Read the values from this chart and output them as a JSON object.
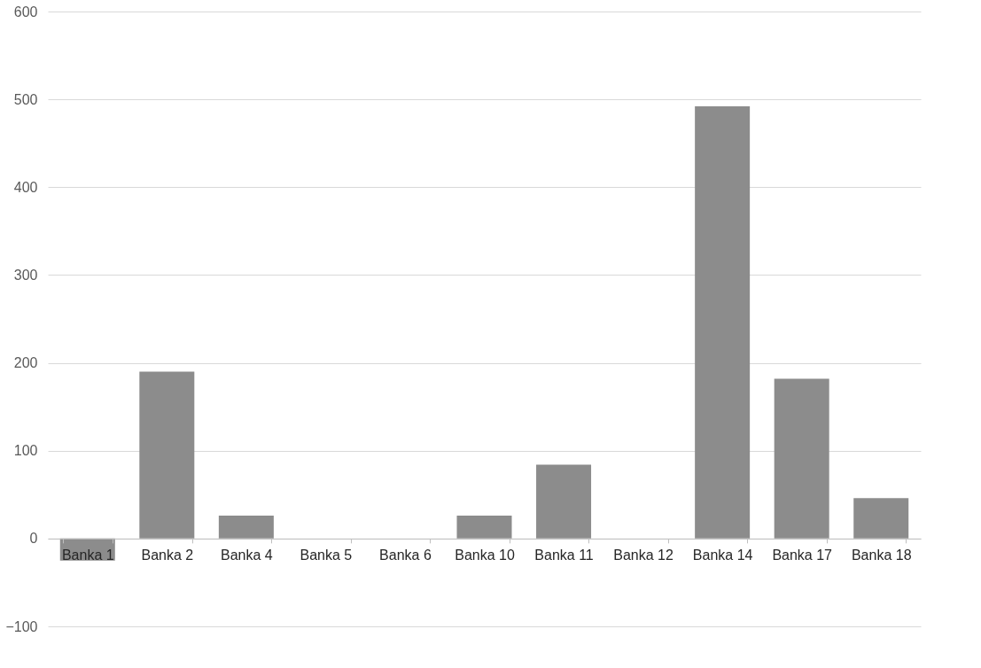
{
  "chart_data": {
    "type": "bar",
    "categories": [
      "Banka 1",
      "Banka 2",
      "Banka 4",
      "Banka 5",
      "Banka 6",
      "Banka 10",
      "Banka 11",
      "Banka 12",
      "Banka 14",
      "Banka 17",
      "Banka 18"
    ],
    "values": [
      -25,
      190,
      26,
      0,
      0,
      26,
      84,
      0,
      492,
      182,
      46
    ],
    "color": "#8c8c8c",
    "ylim": [
      -100,
      600
    ],
    "yticks": [
      -100,
      0,
      100,
      200,
      300,
      400,
      500,
      600
    ],
    "grid": "y"
  }
}
